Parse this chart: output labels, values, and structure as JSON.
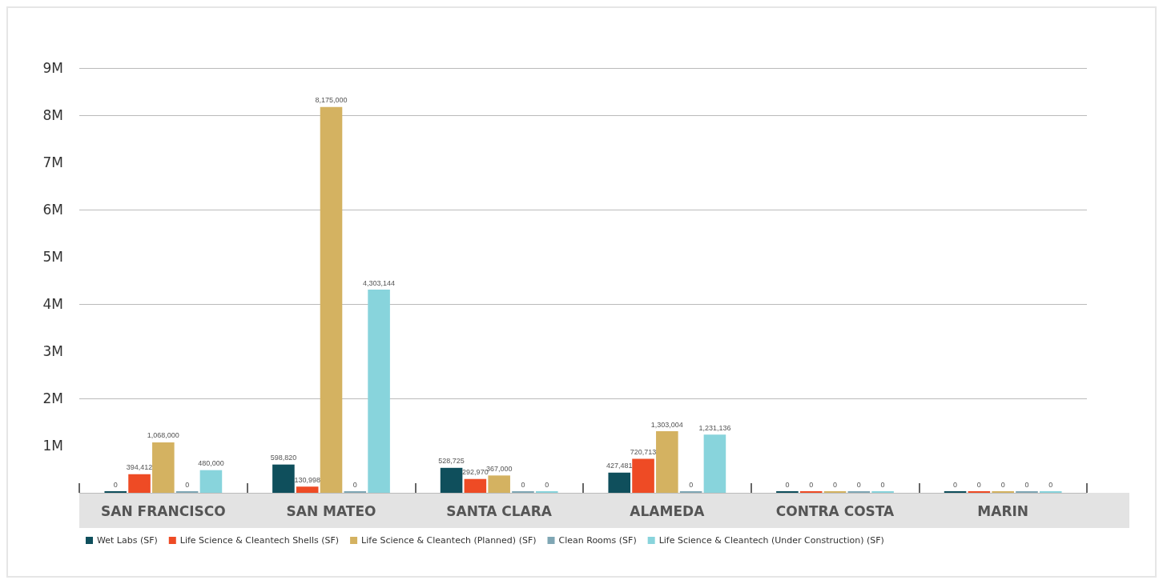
{
  "chart_data": {
    "type": "bar",
    "categories": [
      "SAN FRANCISCO",
      "SAN MATEO",
      "SANTA CLARA",
      "ALAMEDA",
      "CONTRA COSTA",
      "MARIN"
    ],
    "series": [
      {
        "name": "Wet Labs (SF)",
        "color": "#0f4f5c",
        "values": [
          0,
          598820,
          528725,
          427481,
          0,
          0
        ],
        "value_labels": [
          "0",
          "598,820",
          "528,725",
          "427,481",
          "0",
          "0"
        ]
      },
      {
        "name": "Life Science & Cleantech Shells (SF)",
        "color": "#ee4b25",
        "values": [
          394412,
          130998,
          292970,
          720713,
          0,
          0
        ],
        "value_labels": [
          "394,412",
          "130,998",
          "292,970",
          "720,713",
          "0",
          "0"
        ]
      },
      {
        "name": "Life Science & Cleantech (Planned) (SF)",
        "color": "#d4b261",
        "values": [
          1068000,
          8175000,
          367000,
          1303004,
          0,
          0
        ],
        "value_labels": [
          "1,068,000",
          "8,175,000",
          "367,000",
          "1,303,004",
          "0",
          "0"
        ]
      },
      {
        "name": "Clean Rooms (SF)",
        "color": "#7fa6b4",
        "values": [
          0,
          0,
          0,
          0,
          0,
          0
        ],
        "value_labels": [
          "0",
          "0",
          "0",
          "0",
          "0",
          "0"
        ]
      },
      {
        "name": "Life Science & Cleantech (Under Construction) (SF)",
        "color": "#88d4dc",
        "values": [
          480000,
          4303144,
          0,
          1231136,
          0,
          0
        ],
        "value_labels": [
          "480,000",
          "4,303,144",
          "0",
          "1,231,136",
          "0",
          "0"
        ]
      }
    ],
    "ylim": [
      0,
      9000000
    ],
    "yticks": [
      {
        "value": 1000000,
        "label": "1M"
      },
      {
        "value": 2000000,
        "label": "2M"
      },
      {
        "value": 3000000,
        "label": "3M"
      },
      {
        "value": 4000000,
        "label": "4M"
      },
      {
        "value": 5000000,
        "label": "5M"
      },
      {
        "value": 6000000,
        "label": "6M"
      },
      {
        "value": 7000000,
        "label": "7M"
      },
      {
        "value": 8000000,
        "label": "8M"
      },
      {
        "value": 9000000,
        "label": "9M"
      }
    ],
    "grid": "y",
    "legend": "bottom left"
  }
}
